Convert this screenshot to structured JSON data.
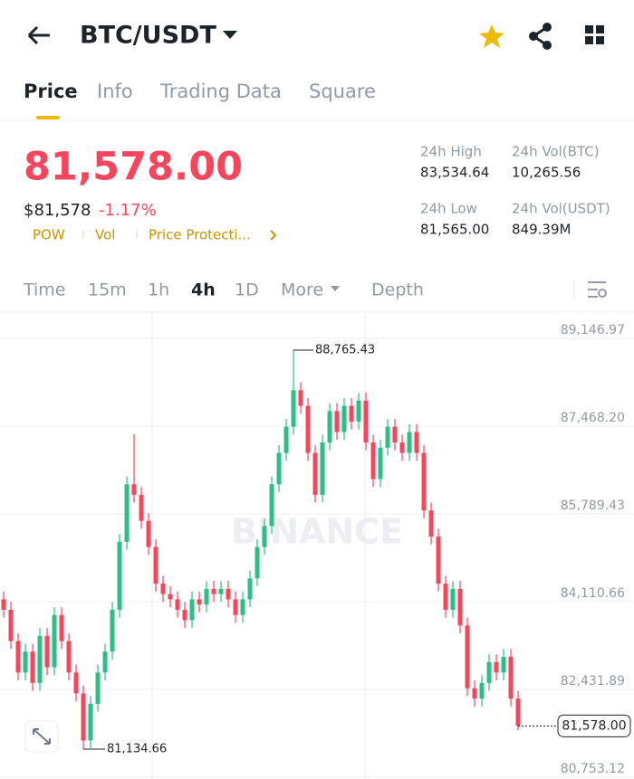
{
  "header": {
    "title": "BTC/USDT"
  },
  "tabs": [
    "Price",
    "Info",
    "Trading Data",
    "Square"
  ],
  "price": {
    "last": "81,578.00",
    "usd": "$81,578",
    "change": "-1.17%"
  },
  "tags": [
    "POW",
    "Vol",
    "Price Protecti..."
  ],
  "stats": [
    {
      "label": "24h High",
      "value": "83,534.64"
    },
    {
      "label": "24h Vol(BTC)",
      "value": "10,265.56"
    },
    {
      "label": "24h Low",
      "value": "81,565.00"
    },
    {
      "label": "24h Vol(USDT)",
      "value": "849.39M"
    }
  ],
  "intervals": [
    "Time",
    "15m",
    "1h",
    "4h",
    "1D",
    "More",
    "Depth"
  ],
  "chart_data": {
    "type": "candlestick",
    "watermark": "BINANCE",
    "up_color": "#2ebd85",
    "down_color": "#f6465d",
    "ylim": [
      80753.12,
      89146.97
    ],
    "yticks": [
      {
        "value": 80753.12,
        "label": "80,753.12"
      },
      {
        "value": 82431.89,
        "label": "82,431.89"
      },
      {
        "value": 84110.66,
        "label": "84,110.66"
      },
      {
        "value": 85789.43,
        "label": "85,789.43"
      },
      {
        "value": 87468.2,
        "label": "87,468.20"
      },
      {
        "value": 89146.97,
        "label": "89,146.97"
      }
    ],
    "max_label": "88,765.43",
    "min_label": "81,134.66",
    "last_price_label": "81,578.00",
    "candles": [
      [
        84000,
        84150,
        83650,
        83800
      ],
      [
        83800,
        83950,
        83050,
        83200
      ],
      [
        83200,
        83350,
        82450,
        82600
      ],
      [
        82600,
        83150,
        82450,
        83000
      ],
      [
        83000,
        83150,
        82250,
        82400
      ],
      [
        82400,
        83450,
        82250,
        83300
      ],
      [
        83300,
        83450,
        82550,
        82700
      ],
      [
        82700,
        83850,
        82550,
        83700
      ],
      [
        83700,
        83850,
        83050,
        83200
      ],
      [
        83200,
        83350,
        82450,
        82600
      ],
      [
        82600,
        82750,
        82050,
        82200
      ],
      [
        82200,
        82350,
        81134.66,
        81300
      ],
      [
        81300,
        82150,
        81150,
        82000
      ],
      [
        82000,
        82750,
        81850,
        82600
      ],
      [
        82600,
        83150,
        82450,
        83000
      ],
      [
        83000,
        83950,
        82850,
        83800
      ],
      [
        83800,
        85250,
        83650,
        85100
      ],
      [
        85100,
        86350,
        84950,
        86200
      ],
      [
        86200,
        87160,
        85850,
        86000
      ],
      [
        86000,
        86150,
        85350,
        85500
      ],
      [
        85500,
        85650,
        84850,
        85000
      ],
      [
        85000,
        85150,
        84150,
        84300
      ],
      [
        84300,
        84450,
        83950,
        84100
      ],
      [
        84100,
        84250,
        83850,
        84000
      ],
      [
        84000,
        84150,
        83650,
        83800
      ],
      [
        83800,
        83950,
        83450,
        83600
      ],
      [
        83600,
        84150,
        83450,
        84000
      ],
      [
        84000,
        84150,
        83750,
        83900
      ],
      [
        83900,
        84350,
        83750,
        84200
      ],
      [
        84200,
        84350,
        83950,
        84100
      ],
      [
        84100,
        84350,
        83950,
        84200
      ],
      [
        84200,
        84350,
        83850,
        84000
      ],
      [
        84000,
        84150,
        83550,
        83700
      ],
      [
        83700,
        84150,
        83550,
        84000
      ],
      [
        84000,
        84550,
        83850,
        84400
      ],
      [
        84400,
        85150,
        84250,
        85000
      ],
      [
        85000,
        85550,
        84850,
        85400
      ],
      [
        85400,
        86350,
        85250,
        86200
      ],
      [
        86200,
        86950,
        86050,
        86800
      ],
      [
        86800,
        87450,
        86650,
        87300
      ],
      [
        87300,
        88765.43,
        87150,
        88000
      ],
      [
        88000,
        88150,
        87550,
        87700
      ],
      [
        87700,
        87850,
        86650,
        86800
      ],
      [
        86800,
        86950,
        85850,
        86000
      ],
      [
        86000,
        87150,
        85850,
        87000
      ],
      [
        87000,
        87750,
        86850,
        87600
      ],
      [
        87600,
        87750,
        87050,
        87200
      ],
      [
        87200,
        87850,
        87050,
        87700
      ],
      [
        87700,
        87850,
        87250,
        87400
      ],
      [
        87400,
        87950,
        87250,
        87800
      ],
      [
        87800,
        87950,
        86850,
        87000
      ],
      [
        87000,
        87150,
        86150,
        86300
      ],
      [
        86300,
        87050,
        86150,
        86900
      ],
      [
        86900,
        87450,
        86750,
        87300
      ],
      [
        87300,
        87450,
        86850,
        87000
      ],
      [
        87000,
        87150,
        86650,
        86800
      ],
      [
        86800,
        87350,
        86650,
        87200
      ],
      [
        87200,
        87350,
        86650,
        86800
      ],
      [
        86800,
        86950,
        85550,
        85700
      ],
      [
        85700,
        85850,
        85050,
        85200
      ],
      [
        85200,
        85350,
        84150,
        84300
      ],
      [
        84300,
        84450,
        83650,
        83800
      ],
      [
        83800,
        84350,
        83650,
        84200
      ],
      [
        84200,
        84350,
        83350,
        83500
      ],
      [
        83500,
        83650,
        82150,
        82300
      ],
      [
        82300,
        82450,
        81950,
        82100
      ],
      [
        82100,
        82550,
        81950,
        82400
      ],
      [
        82400,
        82950,
        82250,
        82800
      ],
      [
        82800,
        82950,
        82450,
        82600
      ],
      [
        82600,
        83050,
        82450,
        82900
      ],
      [
        82900,
        83050,
        81950,
        82100
      ],
      [
        82100,
        82250,
        81500,
        81578
      ]
    ]
  }
}
